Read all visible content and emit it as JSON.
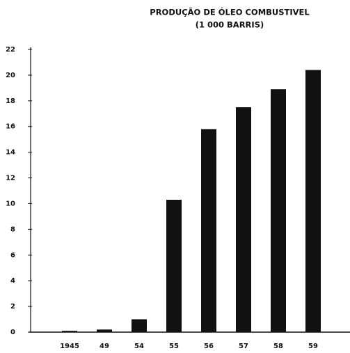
{
  "chart_data": {
    "type": "bar",
    "title": "PRODUÇÃO DE ÓLEO COMBUSTIVEL",
    "subtitle": "(1 000 BARRIS)",
    "categories": [
      "1945",
      "49",
      "54",
      "55",
      "56",
      "57",
      "58",
      "59"
    ],
    "values": [
      0.1,
      0.2,
      1.0,
      10.3,
      15.8,
      17.5,
      18.9,
      20.4
    ],
    "color": "#111111",
    "ylim": [
      0,
      22
    ],
    "yticks": [
      0,
      2,
      4,
      6,
      8,
      10,
      12,
      14,
      16,
      18,
      20,
      22
    ],
    "grid": false
  }
}
